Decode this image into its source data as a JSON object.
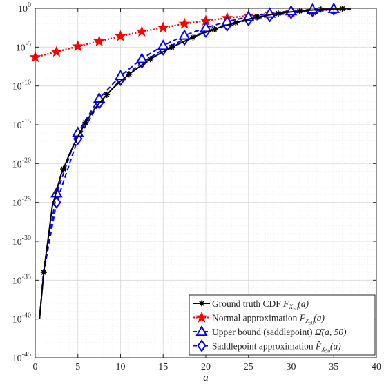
{
  "chart_data": {
    "type": "line",
    "title": "",
    "xlabel": "a",
    "ylabel": "",
    "xlim": [
      0,
      40
    ],
    "ylim": [
      1e-45,
      1
    ],
    "yscale": "log",
    "grid": true,
    "minor_grid": true,
    "legend_position": "bottom-right",
    "x_ticks": [
      0,
      5,
      10,
      15,
      20,
      25,
      30,
      35,
      40
    ],
    "y_ticks": [
      {
        "base": "10",
        "exp": "-45",
        "value": -45
      },
      {
        "base": "10",
        "exp": "-40",
        "value": -40
      },
      {
        "base": "10",
        "exp": "-35",
        "value": -35
      },
      {
        "base": "10",
        "exp": "-30",
        "value": -30
      },
      {
        "base": "10",
        "exp": "-25",
        "value": -25
      },
      {
        "base": "10",
        "exp": "-20",
        "value": -20
      },
      {
        "base": "10",
        "exp": "-15",
        "value": -15
      },
      {
        "base": "10",
        "exp": "-10",
        "value": -10
      },
      {
        "base": "10",
        "exp": "-5",
        "value": -5
      },
      {
        "base": "10",
        "exp": "0",
        "value": 0
      }
    ],
    "series": [
      {
        "name": "Ground truth CDF F_{X_50}(a)",
        "legend_text": "Ground truth CDF",
        "legend_math": "F",
        "legend_sub": "X",
        "legend_subsub": "50",
        "legend_arg": "(a)",
        "color": "#000000",
        "line": "solid",
        "marker": "asterisk",
        "x": [
          0.5,
          1,
          2,
          3,
          4,
          5,
          6,
          7,
          8,
          9,
          10,
          11,
          12,
          13,
          14,
          15,
          16,
          17,
          18,
          19,
          20,
          21,
          22,
          23,
          24,
          25,
          26,
          27,
          28,
          29,
          30,
          31,
          32,
          33,
          34,
          35,
          36,
          37
        ],
        "y_log10": [
          -40,
          -34,
          -25.5,
          -21.5,
          -18.8,
          -16.5,
          -14.5,
          -12.9,
          -11.6,
          -10.4,
          -9.4,
          -8.5,
          -7.7,
          -6.9,
          -6.2,
          -5.6,
          -5.0,
          -4.5,
          -4.0,
          -3.5,
          -3.1,
          -2.7,
          -2.3,
          -2.0,
          -1.7,
          -1.4,
          -1.15,
          -0.95,
          -0.75,
          -0.6,
          -0.47,
          -0.36,
          -0.27,
          -0.19,
          -0.13,
          -0.08,
          -0.05,
          -0.03
        ],
        "marker_x": [
          1,
          3.3,
          5.9,
          8.4,
          11,
          13.5,
          16,
          18.5,
          21,
          23.5,
          26,
          28.5,
          31,
          33.5,
          36
        ]
      },
      {
        "name": "Normal approximation F_{Z_50}(a)",
        "legend_text": "Normal approximation",
        "legend_math": "F",
        "legend_sub": "Z",
        "legend_subsub": "50",
        "legend_arg": "(a)",
        "color": "#ff0000",
        "line": "dotted",
        "marker": "pentagram",
        "x": [
          0,
          2.5,
          5,
          7.5,
          10,
          12.5,
          15,
          17.5,
          20,
          22.5,
          25,
          27.5,
          30,
          32.5,
          35,
          37
        ],
        "y_log10": [
          -6.3,
          -5.6,
          -4.9,
          -4.25,
          -3.6,
          -3.0,
          -2.5,
          -2.0,
          -1.6,
          -1.25,
          -0.95,
          -0.7,
          -0.5,
          -0.33,
          -0.2,
          -0.13
        ],
        "marker_x": [
          0,
          2.5,
          5,
          7.5,
          10,
          12.5,
          15,
          17.5,
          20,
          22.5,
          25,
          27.5,
          30,
          32.5,
          35
        ]
      },
      {
        "name": "Upper bound (saddlepoint) Ω̄(a, 50)",
        "legend_text": "Upper bound (saddlepoint)",
        "legend_math": "Ω̄",
        "legend_sub": "",
        "legend_subsub": "",
        "legend_arg": "(a, 50)",
        "color": "#0000ff",
        "line": "dashed",
        "marker": "triangle",
        "x": [
          0.5,
          1,
          2.5,
          5,
          7.5,
          10,
          12.5,
          15,
          17.5,
          20,
          22.5,
          25,
          27.5,
          30,
          32.5,
          35,
          37
        ],
        "y_log10": [
          -40,
          -33.5,
          -23.8,
          -16.0,
          -11.6,
          -8.7,
          -6.5,
          -4.8,
          -3.5,
          -2.5,
          -1.7,
          -1.1,
          -0.65,
          -0.35,
          -0.15,
          -0.05,
          0
        ],
        "marker_x": [
          2.5,
          5,
          7.5,
          10,
          12.5,
          15,
          17.5,
          20,
          22.5,
          25,
          27.5,
          30,
          32.5,
          35
        ]
      },
      {
        "name": "Saddlepoint approximation F̂_{X_50}(a)",
        "legend_text": "Saddlepoint approximation",
        "legend_math": "F̂",
        "legend_sub": "X",
        "legend_subsub": "50",
        "legend_arg": "(a)",
        "color": "#0000ff",
        "line": "dashed",
        "marker": "diamond",
        "x": [
          0.5,
          1,
          2.5,
          5,
          7.5,
          10,
          12.5,
          15,
          17.5,
          20,
          22.5,
          25,
          27.5,
          30,
          32.5,
          35,
          37
        ],
        "y_log10": [
          -40,
          -34,
          -25.0,
          -16.8,
          -12.2,
          -9.2,
          -7.0,
          -5.3,
          -4.0,
          -3.0,
          -2.2,
          -1.5,
          -1.0,
          -0.6,
          -0.33,
          -0.15,
          -0.08
        ],
        "marker_x": [
          2.5,
          5,
          7.5,
          10,
          12.5,
          15,
          17.5,
          20,
          22.5,
          25,
          27.5,
          30,
          32.5,
          35
        ]
      }
    ]
  }
}
